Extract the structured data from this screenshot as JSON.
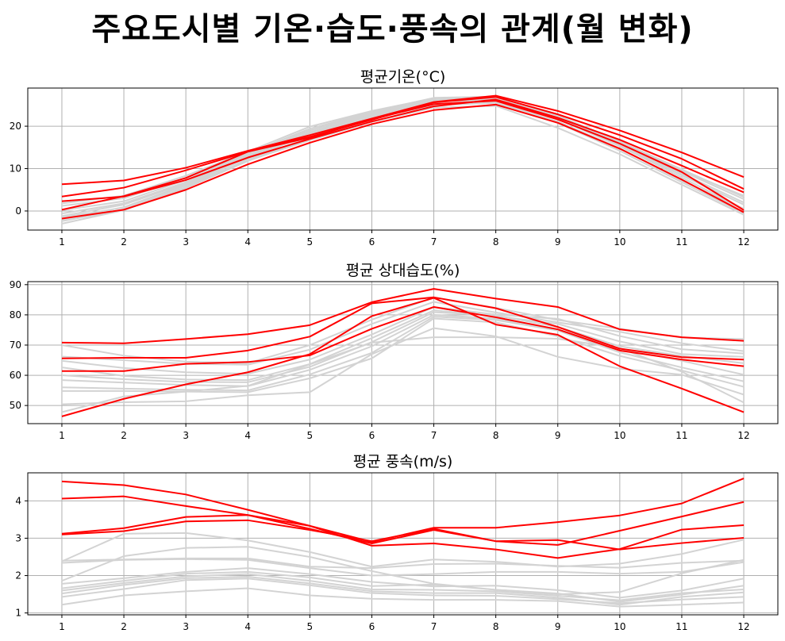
{
  "title": "주요도시별 기온·습도·풍속의 관계(월 변화)",
  "colors": {
    "highlight": "#ff0000",
    "other": "#d3d3d3",
    "grid": "#b0b0b0",
    "axis": "#000000"
  },
  "chart_data": [
    {
      "type": "line",
      "title": "평균기온(°C)",
      "xlabel": "",
      "ylabel": "",
      "x": [
        1,
        2,
        3,
        4,
        5,
        6,
        7,
        8,
        9,
        10,
        11,
        12
      ],
      "xlim": [
        0.45,
        12.55
      ],
      "ylim": [
        -4.5,
        29
      ],
      "yticks": [
        0,
        10,
        20
      ],
      "grid": true,
      "series": [
        {
          "highlight": true,
          "values": [
            6.3,
            7.2,
            10.2,
            14.2,
            17.9,
            21.8,
            25.7,
            27.2,
            23.6,
            19.0,
            13.8,
            8.0
          ]
        },
        {
          "highlight": true,
          "values": [
            3.4,
            5.5,
            9.6,
            14.0,
            17.5,
            21.5,
            25.6,
            26.9,
            22.8,
            17.9,
            12.3,
            5.2
          ]
        },
        {
          "highlight": true,
          "values": [
            2.3,
            3.4,
            7.3,
            12.6,
            17.0,
            21.1,
            24.7,
            26.3,
            22.0,
            16.8,
            10.7,
            4.4
          ]
        },
        {
          "highlight": true,
          "values": [
            0.3,
            3.5,
            7.8,
            14.0,
            17.3,
            21.7,
            25.2,
            26.0,
            21.6,
            15.9,
            9.2,
            0.2
          ]
        },
        {
          "highlight": true,
          "values": [
            -1.8,
            0.3,
            5.0,
            11.0,
            16.1,
            20.5,
            23.8,
            25.1,
            20.8,
            14.7,
            7.4,
            -0.3
          ]
        },
        {
          "highlight": false,
          "values": [
            -2.4,
            0.4,
            5.6,
            12.1,
            17.4,
            22.1,
            25.3,
            25.7,
            21.1,
            14.8,
            7.2,
            0.4
          ]
        },
        {
          "highlight": false,
          "values": [
            -3.0,
            0.2,
            5.4,
            11.8,
            17.0,
            21.7,
            25.0,
            25.5,
            20.8,
            14.2,
            6.8,
            -0.5
          ]
        },
        {
          "highlight": false,
          "values": [
            -2.0,
            0.9,
            6.2,
            12.5,
            18.0,
            22.4,
            25.8,
            26.2,
            21.7,
            15.3,
            7.9,
            0.5
          ]
        },
        {
          "highlight": false,
          "values": [
            -1.2,
            1.5,
            6.5,
            12.8,
            18.3,
            22.7,
            26.0,
            26.4,
            21.8,
            15.5,
            8.4,
            1.5
          ]
        },
        {
          "highlight": false,
          "values": [
            -0.6,
            1.8,
            6.8,
            13.0,
            18.6,
            22.9,
            26.2,
            26.6,
            22.1,
            15.8,
            8.8,
            2.0
          ]
        },
        {
          "highlight": false,
          "values": [
            0.2,
            2.3,
            7.3,
            13.3,
            19.0,
            23.2,
            26.5,
            26.9,
            22.4,
            16.2,
            9.4,
            2.8
          ]
        },
        {
          "highlight": false,
          "values": [
            1.2,
            3.0,
            7.8,
            13.6,
            19.4,
            23.4,
            26.7,
            27.0,
            22.5,
            16.4,
            9.8,
            3.3
          ]
        },
        {
          "highlight": false,
          "values": [
            1.8,
            3.6,
            8.3,
            14.0,
            19.9,
            23.6,
            26.6,
            26.6,
            22.3,
            16.0,
            9.5,
            3.6
          ]
        },
        {
          "highlight": false,
          "values": [
            -1.5,
            0.8,
            6.0,
            11.9,
            16.7,
            21.0,
            24.4,
            24.8,
            19.6,
            13.4,
            6.2,
            -0.9
          ]
        }
      ]
    },
    {
      "type": "line",
      "title": "평균 상대습도(%)",
      "xlabel": "",
      "ylabel": "",
      "x": [
        1,
        2,
        3,
        4,
        5,
        6,
        7,
        8,
        9,
        10,
        11,
        12
      ],
      "xlim": [
        0.45,
        12.55
      ],
      "ylim": [
        44,
        91
      ],
      "yticks": [
        50,
        60,
        70,
        80,
        90
      ],
      "grid": true,
      "series": [
        {
          "highlight": true,
          "values": [
            70.8,
            70.6,
            72.0,
            73.6,
            76.6,
            84.2,
            88.6,
            85.4,
            82.6,
            75.2,
            72.6,
            71.4
          ]
        },
        {
          "highlight": true,
          "values": [
            65.6,
            65.8,
            65.8,
            68.2,
            72.8,
            83.8,
            85.8,
            82.2,
            76.0,
            68.8,
            66.0,
            65.2
          ]
        },
        {
          "highlight": true,
          "values": [
            61.4,
            61.4,
            63.8,
            64.4,
            66.6,
            75.4,
            82.6,
            79.2,
            75.2,
            68.2,
            65.2,
            63.0
          ]
        },
        {
          "highlight": true,
          "values": [
            46.4,
            52.2,
            57.0,
            61.0,
            67.0,
            79.6,
            85.6,
            76.8,
            73.4,
            63.0,
            55.6,
            47.8
          ]
        },
        {
          "highlight": false,
          "values": [
            70.0,
            66.5,
            64.5,
            64.0,
            70.0,
            78.4,
            85.8,
            82.3,
            78.3,
            75.4,
            72.5,
            72.0
          ]
        },
        {
          "highlight": false,
          "values": [
            66.2,
            65.0,
            63.8,
            63.5,
            68.5,
            77.0,
            84.3,
            80.8,
            77.5,
            74.4,
            70.6,
            68.0
          ]
        },
        {
          "highlight": false,
          "values": [
            64.8,
            62.4,
            61.0,
            60.5,
            65.2,
            73.5,
            82.6,
            80.1,
            78.7,
            73.0,
            68.6,
            67.2
          ]
        },
        {
          "highlight": false,
          "values": [
            62.6,
            59.8,
            58.6,
            58.4,
            63.7,
            72.3,
            81.5,
            79.6,
            77.0,
            71.2,
            67.0,
            66.1
          ]
        },
        {
          "highlight": false,
          "values": [
            60.0,
            58.7,
            57.8,
            57.7,
            62.8,
            71.0,
            80.9,
            79.8,
            76.0,
            69.6,
            66.4,
            64.0
          ]
        },
        {
          "highlight": false,
          "values": [
            58.4,
            57.6,
            56.8,
            56.4,
            61.8,
            69.6,
            80.0,
            78.8,
            75.2,
            68.9,
            64.8,
            60.2
          ]
        },
        {
          "highlight": false,
          "values": [
            56.0,
            55.6,
            55.2,
            55.0,
            60.3,
            67.4,
            79.4,
            78.3,
            74.8,
            67.6,
            62.6,
            58.0
          ]
        },
        {
          "highlight": false,
          "values": [
            54.8,
            54.8,
            54.6,
            54.4,
            59.0,
            65.6,
            78.8,
            77.5,
            72.9,
            66.4,
            61.6,
            56.2
          ]
        },
        {
          "highlight": false,
          "values": [
            50.4,
            51.1,
            51.4,
            53.4,
            54.4,
            67.0,
            75.6,
            72.9,
            66.1,
            62.2,
            60.2,
            53.6
          ]
        },
        {
          "highlight": false,
          "values": [
            47.8,
            53.0,
            54.6,
            56.5,
            63.6,
            70.8,
            72.6,
            72.6,
            72.1,
            69.0,
            61.2,
            51.0
          ]
        }
      ]
    },
    {
      "type": "line",
      "title": "평균 풍속(m/s)",
      "xlabel": "",
      "ylabel": "",
      "x": [
        1,
        2,
        3,
        4,
        5,
        6,
        7,
        8,
        9,
        10,
        11,
        12
      ],
      "xlim": [
        0.45,
        12.55
      ],
      "ylim": [
        0.95,
        4.75
      ],
      "yticks": [
        1,
        2,
        3,
        4
      ],
      "grid": true,
      "series": [
        {
          "highlight": true,
          "values": [
            4.52,
            4.42,
            4.17,
            3.76,
            3.33,
            2.9,
            3.28,
            3.28,
            3.43,
            3.61,
            3.93,
            4.6
          ]
        },
        {
          "highlight": true,
          "values": [
            4.06,
            4.12,
            3.86,
            3.62,
            3.25,
            2.86,
            3.22,
            2.92,
            2.82,
            3.2,
            3.58,
            3.97
          ]
        },
        {
          "highlight": true,
          "values": [
            3.12,
            3.27,
            3.57,
            3.62,
            3.33,
            2.8,
            2.86,
            2.7,
            2.47,
            2.71,
            3.23,
            3.35
          ]
        },
        {
          "highlight": true,
          "values": [
            3.1,
            3.19,
            3.45,
            3.48,
            3.22,
            2.92,
            3.25,
            2.92,
            2.95,
            2.7,
            2.87,
            3.01
          ]
        },
        {
          "highlight": false,
          "values": [
            2.4,
            2.43,
            2.46,
            2.46,
            2.24,
            2.2,
            2.31,
            2.32,
            2.26,
            2.21,
            2.34,
            2.4
          ]
        },
        {
          "highlight": false,
          "values": [
            2.34,
            2.42,
            2.44,
            2.42,
            2.2,
            2.0,
            2.04,
            2.1,
            2.1,
            2.05,
            2.1,
            2.36
          ]
        },
        {
          "highlight": false,
          "values": [
            2.38,
            3.12,
            3.14,
            2.94,
            2.63,
            2.24,
            2.43,
            2.37,
            2.24,
            2.32,
            2.58,
            2.96
          ]
        },
        {
          "highlight": false,
          "values": [
            1.86,
            2.52,
            2.74,
            2.77,
            2.5,
            2.12,
            1.78,
            1.62,
            1.5,
            1.56,
            2.06,
            2.42
          ]
        },
        {
          "highlight": false,
          "values": [
            1.78,
            1.93,
            2.1,
            2.2,
            2.04,
            1.83,
            1.71,
            1.73,
            1.61,
            1.41,
            1.6,
            1.92
          ]
        },
        {
          "highlight": false,
          "values": [
            1.66,
            1.86,
            2.05,
            2.1,
            1.95,
            1.72,
            1.76,
            1.62,
            1.52,
            1.3,
            1.49,
            1.73
          ]
        },
        {
          "highlight": false,
          "values": [
            1.6,
            1.8,
            1.98,
            2.04,
            1.86,
            1.63,
            1.62,
            1.58,
            1.46,
            1.34,
            1.53,
            1.63
          ]
        },
        {
          "highlight": false,
          "values": [
            1.52,
            1.75,
            1.93,
            1.97,
            1.79,
            1.58,
            1.53,
            1.53,
            1.41,
            1.22,
            1.43,
            1.55
          ]
        },
        {
          "highlight": false,
          "values": [
            1.43,
            1.64,
            1.88,
            1.92,
            1.74,
            1.53,
            1.47,
            1.46,
            1.37,
            1.26,
            1.36,
            1.43
          ]
        },
        {
          "highlight": false,
          "values": [
            1.22,
            1.47,
            1.58,
            1.66,
            1.47,
            1.38,
            1.35,
            1.35,
            1.32,
            1.17,
            1.22,
            1.28
          ]
        }
      ]
    }
  ]
}
